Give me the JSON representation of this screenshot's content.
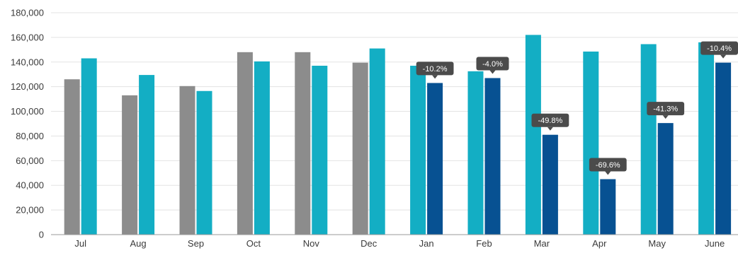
{
  "chart_data": {
    "type": "bar",
    "categories": [
      "Jul",
      "Aug",
      "Sep",
      "Oct",
      "Nov",
      "Dec",
      "Jan",
      "Feb",
      "Mar",
      "Apr",
      "May",
      "June"
    ],
    "ylim": [
      0,
      180000
    ],
    "yticks": [
      0,
      20000,
      40000,
      60000,
      80000,
      100000,
      120000,
      140000,
      160000,
      180000
    ],
    "ytick_labels": [
      "0",
      "20,000",
      "40,000",
      "60,000",
      "80,000",
      "100,000",
      "120,000",
      "140,000",
      "160,000",
      "180,000"
    ],
    "grid": true,
    "legend": "none",
    "series": [
      {
        "color": "#8c8c8c",
        "values": [
          126000,
          113000,
          120500,
          148000,
          148000,
          139500,
          null,
          null,
          null,
          null,
          null,
          null
        ]
      },
      {
        "color": "#13aec4",
        "values": [
          143000,
          129500,
          116500,
          140500,
          137000,
          151000,
          137000,
          132500,
          162000,
          148500,
          154500,
          156000
        ]
      },
      {
        "color": "#075192",
        "values": [
          null,
          null,
          null,
          null,
          null,
          null,
          123000,
          127000,
          81000,
          45000,
          90500,
          139500
        ]
      }
    ],
    "annotations": [
      {
        "category": "Jan",
        "text": "-10.2%"
      },
      {
        "category": "Feb",
        "text": "-4.0%"
      },
      {
        "category": "Mar",
        "text": "-49.8%"
      },
      {
        "category": "Apr",
        "text": "-69.6%"
      },
      {
        "category": "May",
        "text": "-41.3%"
      },
      {
        "category": "June",
        "text": "-10.4%"
      }
    ],
    "colors": {
      "grid": "#e3e3e3",
      "axis": "#9a9a9a",
      "callout_bg": "#4b4b4b",
      "callout_text": "#ffffff"
    }
  }
}
